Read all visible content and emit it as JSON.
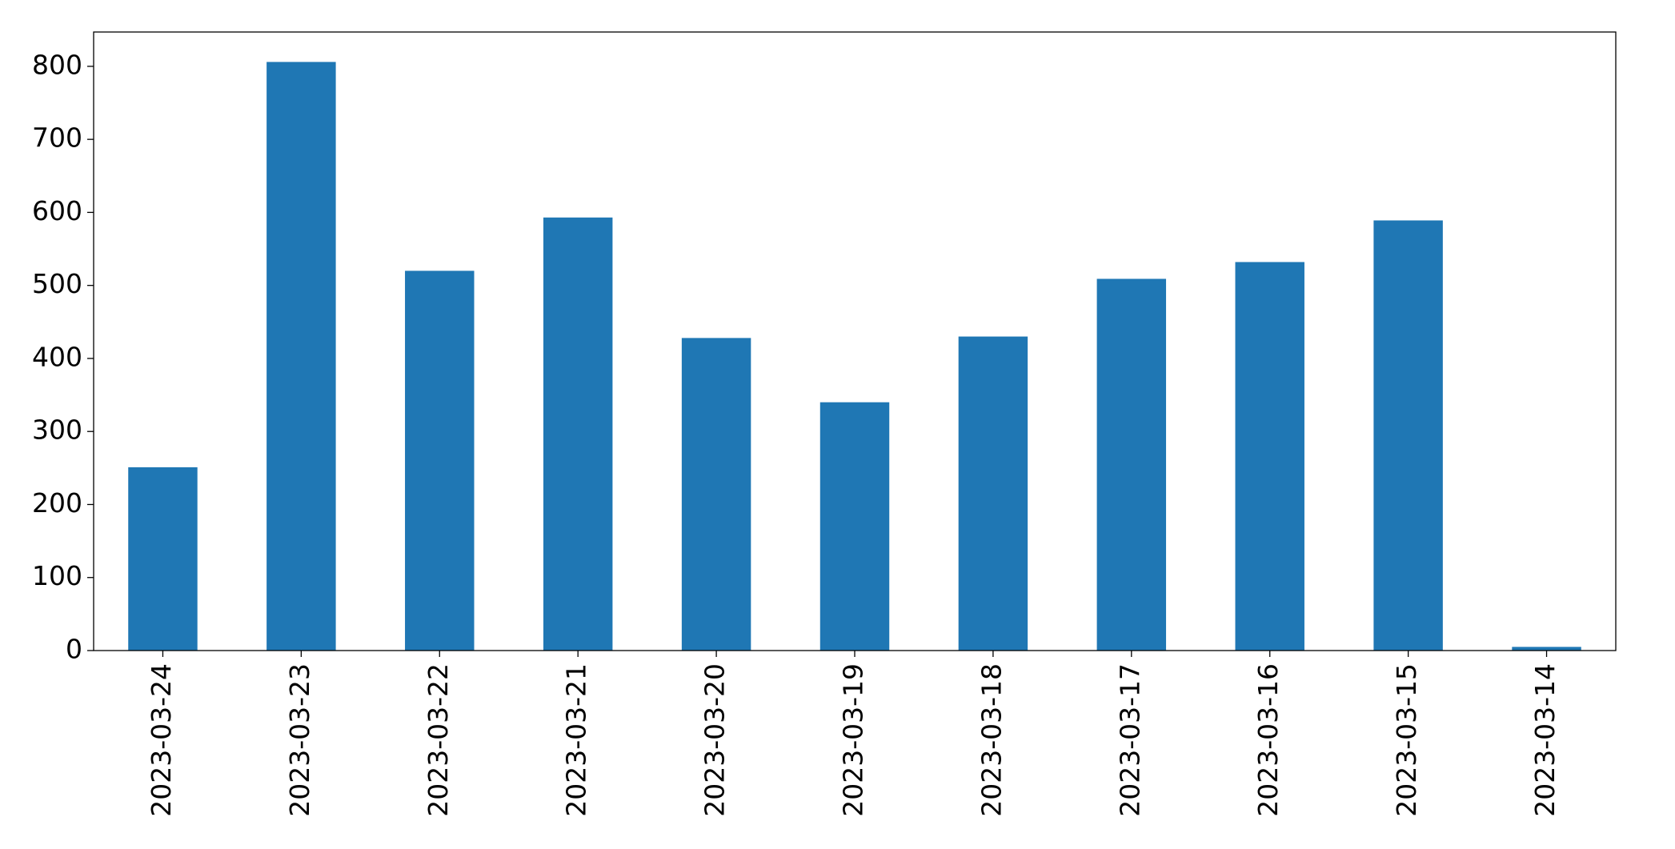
{
  "chart_data": {
    "type": "bar",
    "title": "",
    "xlabel": "",
    "ylabel": "",
    "categories": [
      "2023-03-24",
      "2023-03-23",
      "2023-03-22",
      "2023-03-21",
      "2023-03-20",
      "2023-03-19",
      "2023-03-18",
      "2023-03-17",
      "2023-03-16",
      "2023-03-15",
      "2023-03-14"
    ],
    "values": [
      251,
      806,
      520,
      593,
      428,
      340,
      430,
      509,
      532,
      589,
      5
    ],
    "ylim": [
      0,
      847
    ],
    "yticks": [
      0,
      100,
      200,
      300,
      400,
      500,
      600,
      700,
      800
    ],
    "bar_color": "#1f77b4",
    "grid": false,
    "legend": "none"
  }
}
